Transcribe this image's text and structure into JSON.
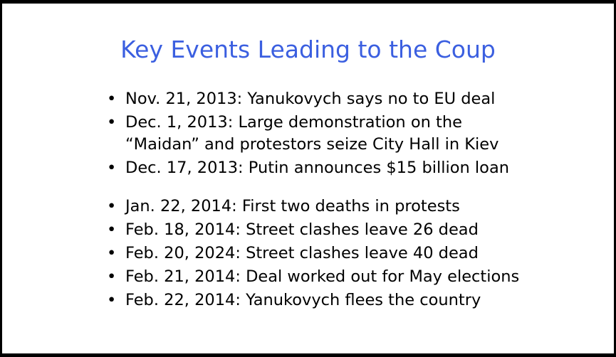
{
  "slide": {
    "title": "Key Events Leading to the Coup",
    "bullet_glyph": "•",
    "items": [
      {
        "text": "Nov. 21, 2013: Yanukovych says no to EU deal"
      },
      {
        "line1": "Dec. 1, 2013: Large demonstration on the",
        "line2": "“Maidan” and protestors seize City Hall in Kiev"
      },
      {
        "text": "Dec. 17, 2013: Putin announces $15 billion loan"
      },
      {
        "text": "Jan. 22, 2014: First two deaths in protests"
      },
      {
        "text": "Feb. 18, 2014: Street clashes leave 26 dead"
      },
      {
        "text": "Feb. 20, 2024: Street clashes leave 40 dead"
      },
      {
        "text": "Feb. 21, 2014: Deal worked out for May elections"
      },
      {
        "text": "Feb. 22, 2014: Yanukovych flees the country"
      }
    ],
    "colors": {
      "title": "#3b5fe0",
      "text": "#000000",
      "background": "#ffffff",
      "frame": "#000000"
    }
  }
}
